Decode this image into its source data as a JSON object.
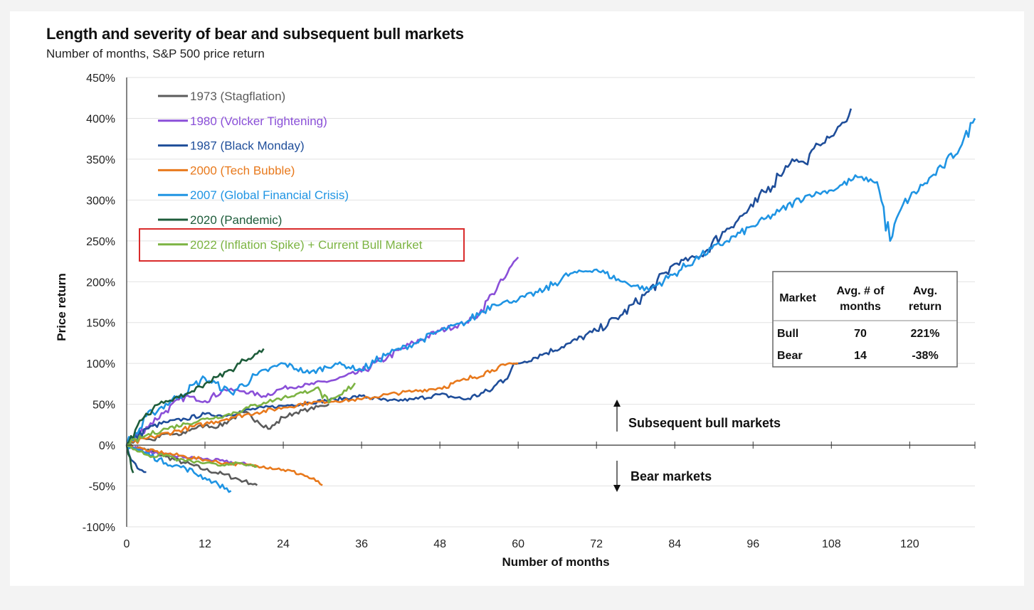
{
  "chart_data": {
    "type": "line",
    "title": "Length and severity of bear and subsequent bull markets",
    "subtitle": "Number of months, S&P 500 price return",
    "xlabel": "Number of months",
    "ylabel": "Price return",
    "xlim": [
      0,
      130
    ],
    "ylim": [
      -100,
      450
    ],
    "x_ticks": [
      0,
      12,
      24,
      36,
      48,
      60,
      72,
      84,
      96,
      108,
      120
    ],
    "y_ticks": [
      -100,
      -50,
      0,
      50,
      100,
      150,
      200,
      250,
      300,
      350,
      400,
      450
    ],
    "y_tick_suffix": "%",
    "grid": "horizontal",
    "legend_position": "top-left",
    "series": [
      {
        "name": "1973 (Stagflation)",
        "color": "#5b5b5b",
        "bear": [
          [
            0,
            0
          ],
          [
            3,
            -6
          ],
          [
            6,
            -14
          ],
          [
            9,
            -22
          ],
          [
            12,
            -30
          ],
          [
            15,
            -36
          ],
          [
            18,
            -44
          ],
          [
            20,
            -49
          ]
        ],
        "bull": [
          [
            0,
            0
          ],
          [
            2,
            10
          ],
          [
            4,
            6
          ],
          [
            6,
            14
          ],
          [
            8,
            12
          ],
          [
            10,
            20
          ],
          [
            12,
            24
          ],
          [
            14,
            22
          ],
          [
            16,
            32
          ],
          [
            18,
            40
          ],
          [
            20,
            30
          ],
          [
            22,
            20
          ],
          [
            24,
            34
          ],
          [
            26,
            40
          ],
          [
            28,
            44
          ],
          [
            30,
            48
          ],
          [
            31,
            50
          ]
        ]
      },
      {
        "name": "1980 (Volcker Tightening)",
        "color": "#8a4fd8",
        "bear": [
          [
            0,
            0
          ],
          [
            3,
            -8
          ],
          [
            6,
            -12
          ],
          [
            9,
            -15
          ],
          [
            12,
            -17
          ],
          [
            15,
            -20
          ],
          [
            17,
            -22
          ],
          [
            19,
            -24
          ],
          [
            20,
            -26
          ]
        ],
        "bull": [
          [
            0,
            0
          ],
          [
            3,
            22
          ],
          [
            6,
            42
          ],
          [
            9,
            60
          ],
          [
            12,
            54
          ],
          [
            15,
            68
          ],
          [
            18,
            66
          ],
          [
            21,
            60
          ],
          [
            24,
            70
          ],
          [
            28,
            74
          ],
          [
            32,
            80
          ],
          [
            36,
            90
          ],
          [
            40,
            108
          ],
          [
            44,
            125
          ],
          [
            48,
            140
          ],
          [
            52,
            150
          ],
          [
            54,
            160
          ],
          [
            56,
            185
          ],
          [
            58,
            205
          ],
          [
            60,
            230
          ]
        ]
      },
      {
        "name": "1987 (Black Monday)",
        "color": "#1f4e9a",
        "bear": [
          [
            0,
            0
          ],
          [
            1,
            -20
          ],
          [
            2,
            -30
          ],
          [
            3,
            -33
          ]
        ],
        "bull": [
          [
            0,
            0
          ],
          [
            3,
            20
          ],
          [
            6,
            28
          ],
          [
            9,
            32
          ],
          [
            12,
            38
          ],
          [
            15,
            36
          ],
          [
            18,
            42
          ],
          [
            21,
            46
          ],
          [
            24,
            48
          ],
          [
            28,
            52
          ],
          [
            32,
            56
          ],
          [
            36,
            60
          ],
          [
            40,
            54
          ],
          [
            44,
            56
          ],
          [
            48,
            62
          ],
          [
            52,
            56
          ],
          [
            56,
            68
          ],
          [
            60,
            100
          ],
          [
            64,
            112
          ],
          [
            68,
            125
          ],
          [
            72,
            140
          ],
          [
            76,
            160
          ],
          [
            80,
            188
          ],
          [
            84,
            222
          ],
          [
            88,
            232
          ],
          [
            92,
            265
          ],
          [
            96,
            292
          ],
          [
            100,
            330
          ],
          [
            102,
            350
          ],
          [
            104,
            345
          ],
          [
            106,
            368
          ],
          [
            108,
            378
          ],
          [
            110,
            395
          ],
          [
            111,
            412
          ]
        ]
      },
      {
        "name": "2000 (Tech Bubble)",
        "color": "#e8791c",
        "bear": [
          [
            0,
            0
          ],
          [
            3,
            -6
          ],
          [
            6,
            -10
          ],
          [
            9,
            -14
          ],
          [
            12,
            -18
          ],
          [
            15,
            -22
          ],
          [
            18,
            -24
          ],
          [
            21,
            -26
          ],
          [
            24,
            -30
          ],
          [
            27,
            -36
          ],
          [
            29,
            -44
          ],
          [
            30,
            -49
          ]
        ],
        "bull": [
          [
            0,
            0
          ],
          [
            4,
            10
          ],
          [
            8,
            18
          ],
          [
            12,
            26
          ],
          [
            16,
            34
          ],
          [
            20,
            40
          ],
          [
            24,
            46
          ],
          [
            28,
            52
          ],
          [
            32,
            54
          ],
          [
            36,
            56
          ],
          [
            40,
            62
          ],
          [
            44,
            66
          ],
          [
            48,
            70
          ],
          [
            52,
            80
          ],
          [
            56,
            92
          ],
          [
            58,
            98
          ],
          [
            60,
            100
          ]
        ]
      },
      {
        "name": "2007 (Global Financial Crisis)",
        "color": "#1f94e3",
        "bear": [
          [
            0,
            0
          ],
          [
            3,
            -10
          ],
          [
            6,
            -22
          ],
          [
            9,
            -28
          ],
          [
            12,
            -40
          ],
          [
            14,
            -48
          ],
          [
            16,
            -56
          ]
        ],
        "bull": [
          [
            0,
            0
          ],
          [
            4,
            40
          ],
          [
            8,
            60
          ],
          [
            12,
            82
          ],
          [
            16,
            64
          ],
          [
            20,
            86
          ],
          [
            24,
            100
          ],
          [
            28,
            88
          ],
          [
            32,
            100
          ],
          [
            36,
            92
          ],
          [
            40,
            112
          ],
          [
            44,
            124
          ],
          [
            48,
            140
          ],
          [
            52,
            150
          ],
          [
            56,
            172
          ],
          [
            60,
            178
          ],
          [
            64,
            190
          ],
          [
            68,
            210
          ],
          [
            72,
            215
          ],
          [
            76,
            200
          ],
          [
            80,
            190
          ],
          [
            84,
            210
          ],
          [
            88,
            232
          ],
          [
            92,
            250
          ],
          [
            96,
            268
          ],
          [
            100,
            286
          ],
          [
            104,
            305
          ],
          [
            108,
            312
          ],
          [
            112,
            328
          ],
          [
            115,
            322
          ],
          [
            117,
            250
          ],
          [
            119,
            295
          ],
          [
            122,
            318
          ],
          [
            125,
            340
          ],
          [
            128,
            368
          ],
          [
            130,
            400
          ]
        ]
      },
      {
        "name": "2020 (Pandemic)",
        "color": "#1d5c3a",
        "bear": [
          [
            0,
            0
          ],
          [
            0.5,
            -15
          ],
          [
            1,
            -34
          ]
        ],
        "bull": [
          [
            0,
            0
          ],
          [
            2,
            30
          ],
          [
            4,
            44
          ],
          [
            6,
            54
          ],
          [
            8,
            58
          ],
          [
            10,
            66
          ],
          [
            12,
            75
          ],
          [
            14,
            84
          ],
          [
            16,
            92
          ],
          [
            18,
            104
          ],
          [
            20,
            112
          ],
          [
            21,
            118
          ]
        ]
      },
      {
        "name": "2022 (Inflation Spike) + Current Bull Market",
        "color": "#7cb342",
        "bear": [
          [
            0,
            0
          ],
          [
            2,
            -8
          ],
          [
            4,
            -14
          ],
          [
            6,
            -12
          ],
          [
            8,
            -18
          ],
          [
            10,
            -20
          ],
          [
            12,
            -22
          ],
          [
            14,
            -25
          ],
          [
            16,
            -22
          ],
          [
            18,
            -24
          ],
          [
            20,
            -26
          ]
        ],
        "bull": [
          [
            0,
            0
          ],
          [
            3,
            12
          ],
          [
            6,
            20
          ],
          [
            9,
            26
          ],
          [
            12,
            32
          ],
          [
            15,
            36
          ],
          [
            18,
            44
          ],
          [
            21,
            52
          ],
          [
            24,
            58
          ],
          [
            27,
            64
          ],
          [
            29,
            70
          ],
          [
            31,
            52
          ],
          [
            33,
            62
          ],
          [
            35,
            76
          ]
        ]
      }
    ],
    "legend_highlight": "2022 (Inflation Spike) + Current Bull Market",
    "table": {
      "headers": [
        "Market",
        "Avg. # of months",
        "Avg. return"
      ],
      "rows": [
        [
          "Bull",
          "70",
          "221%"
        ],
        [
          "Bear",
          "14",
          "-38%"
        ]
      ]
    },
    "annotations": {
      "bull_label": "Subsequent bull markets",
      "bear_label": "Bear markets"
    }
  }
}
